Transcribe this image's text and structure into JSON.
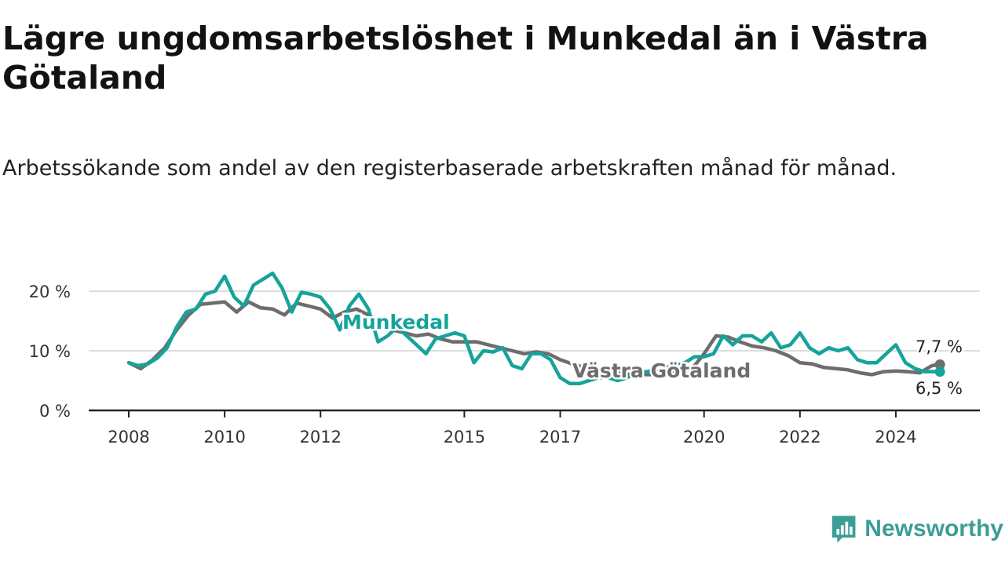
{
  "title": "Lägre ungdomsarbetslöshet i Munkedal än i Västra Götaland",
  "subtitle": "Arbetssökande som andel av den registerbaserade arbetskraften månad för månad.",
  "brand": {
    "name": "Newsworthy",
    "icon": "newsworthy-logo-icon",
    "color": "#3c9d96"
  },
  "chart_data": {
    "type": "line",
    "y_ticks": [
      {
        "value": 0,
        "label": "0 %"
      },
      {
        "value": 10,
        "label": "10 %"
      },
      {
        "value": 20,
        "label": "20 %"
      }
    ],
    "x_ticks": [
      {
        "value": 2008,
        "label": "2008"
      },
      {
        "value": 2010,
        "label": "2010"
      },
      {
        "value": 2012,
        "label": "2012"
      },
      {
        "value": 2015,
        "label": "2015"
      },
      {
        "value": 2017,
        "label": "2017"
      },
      {
        "value": 2020,
        "label": "2020"
      },
      {
        "value": 2022,
        "label": "2022"
      },
      {
        "value": 2024,
        "label": "2024"
      }
    ],
    "xlim": [
      2008,
      2025.6
    ],
    "ylim": [
      0,
      20.6
    ],
    "grid": true,
    "series": [
      {
        "name": "Västra Götaland",
        "color": "#6e6c6d",
        "end_label": "7,7 %",
        "x": [
          2008.0,
          2008.25,
          2008.5,
          2008.75,
          2009.0,
          2009.25,
          2009.5,
          2009.75,
          2010.0,
          2010.25,
          2010.5,
          2010.75,
          2011.0,
          2011.25,
          2011.5,
          2011.75,
          2012.0,
          2012.25,
          2012.5,
          2012.75,
          2013.0,
          2013.25,
          2013.5,
          2013.75,
          2014.0,
          2014.25,
          2014.5,
          2014.75,
          2015.0,
          2015.25,
          2015.5,
          2015.75,
          2016.0,
          2016.25,
          2016.5,
          2016.75,
          2017.0,
          2017.25,
          2017.5,
          2017.75,
          2018.0,
          2018.25,
          2018.5,
          2018.75,
          2019.0,
          2019.25,
          2019.5,
          2019.75,
          2020.0,
          2020.25,
          2020.5,
          2020.75,
          2021.0,
          2021.25,
          2021.5,
          2021.75,
          2022.0,
          2022.25,
          2022.5,
          2022.75,
          2023.0,
          2023.25,
          2023.5,
          2023.75,
          2024.0,
          2024.25,
          2024.5,
          2024.75,
          2024.92
        ],
        "y": [
          8.0,
          7.0,
          8.5,
          10.5,
          13.5,
          16.0,
          17.8,
          18.0,
          18.2,
          16.5,
          18.2,
          17.2,
          17.0,
          16.0,
          18.0,
          17.5,
          17.0,
          15.5,
          16.5,
          17.0,
          16.0,
          14.5,
          13.5,
          13.0,
          12.5,
          12.8,
          12.0,
          11.5,
          11.5,
          11.5,
          11.0,
          10.5,
          10.0,
          9.5,
          9.8,
          9.5,
          8.5,
          7.8,
          7.2,
          7.0,
          6.5,
          6.2,
          6.0,
          6.0,
          6.0,
          6.2,
          6.5,
          7.0,
          9.5,
          12.5,
          12.3,
          11.5,
          10.8,
          10.5,
          10.0,
          9.2,
          8.0,
          7.8,
          7.2,
          7.0,
          6.8,
          6.3,
          6.0,
          6.5,
          6.6,
          6.5,
          6.3,
          7.5,
          7.7
        ]
      },
      {
        "name": "Munkedal",
        "color": "#16a39b",
        "end_label": "6,5 %",
        "x": [
          2008.0,
          2008.2,
          2008.4,
          2008.6,
          2008.8,
          2009.0,
          2009.2,
          2009.4,
          2009.6,
          2009.8,
          2010.0,
          2010.2,
          2010.4,
          2010.6,
          2010.8,
          2011.0,
          2011.2,
          2011.4,
          2011.6,
          2011.8,
          2012.0,
          2012.2,
          2012.4,
          2012.6,
          2012.8,
          2013.0,
          2013.2,
          2013.4,
          2013.6,
          2013.8,
          2014.0,
          2014.2,
          2014.4,
          2014.6,
          2014.8,
          2015.0,
          2015.2,
          2015.4,
          2015.6,
          2015.8,
          2016.0,
          2016.2,
          2016.4,
          2016.6,
          2016.8,
          2017.0,
          2017.2,
          2017.4,
          2017.6,
          2017.8,
          2018.0,
          2018.2,
          2018.4,
          2018.6,
          2018.8,
          2019.0,
          2019.2,
          2019.4,
          2019.6,
          2019.8,
          2020.0,
          2020.2,
          2020.4,
          2020.6,
          2020.8,
          2021.0,
          2021.2,
          2021.4,
          2021.6,
          2021.8,
          2022.0,
          2022.2,
          2022.4,
          2022.6,
          2022.8,
          2023.0,
          2023.2,
          2023.4,
          2023.6,
          2023.8,
          2024.0,
          2024.2,
          2024.4,
          2024.6,
          2024.8,
          2024.92
        ],
        "y": [
          8.0,
          7.5,
          7.8,
          8.8,
          10.5,
          14.0,
          16.5,
          17.0,
          19.5,
          20.0,
          22.5,
          19.0,
          17.5,
          21.0,
          22.0,
          23.0,
          20.5,
          16.5,
          19.8,
          19.5,
          19.0,
          17.0,
          13.5,
          17.5,
          19.5,
          17.0,
          11.5,
          12.5,
          14.0,
          12.5,
          11.0,
          9.5,
          12.0,
          12.5,
          13.0,
          12.5,
          8.0,
          10.0,
          9.8,
          10.5,
          7.5,
          7.0,
          9.5,
          9.5,
          8.5,
          5.5,
          4.5,
          4.5,
          5.0,
          5.5,
          5.5,
          5.0,
          5.5,
          6.5,
          6.5,
          6.8,
          7.2,
          7.5,
          8.0,
          9.0,
          9.0,
          9.5,
          12.5,
          11.0,
          12.5,
          12.5,
          11.5,
          13.0,
          10.5,
          11.0,
          13.0,
          10.5,
          9.5,
          10.5,
          10.0,
          10.5,
          8.5,
          8.0,
          8.0,
          9.5,
          11.0,
          8.0,
          7.0,
          6.5,
          6.5,
          6.5
        ]
      }
    ]
  }
}
